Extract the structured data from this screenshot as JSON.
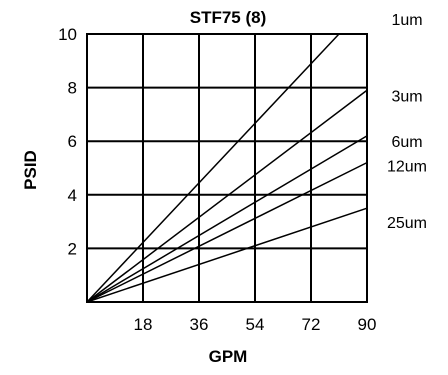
{
  "chart_data": {
    "type": "line",
    "title": "STF75 (8)",
    "xlabel": "GPM",
    "ylabel": "PSID",
    "xlim": [
      0,
      90
    ],
    "ylim": [
      0,
      10
    ],
    "x_ticks": [
      "18",
      "36",
      "54",
      "72",
      "90"
    ],
    "y_ticks": [
      "2",
      "4",
      "6",
      "8",
      "10"
    ],
    "grid": true,
    "series": [
      {
        "name": "1um",
        "x": [
          0,
          81
        ],
        "y": [
          0,
          10
        ]
      },
      {
        "name": "3um",
        "x": [
          0,
          90
        ],
        "y": [
          0,
          7.9
        ]
      },
      {
        "name": "6um",
        "x": [
          0,
          90
        ],
        "y": [
          0,
          6.2
        ]
      },
      {
        "name": "12um",
        "x": [
          0,
          90
        ],
        "y": [
          0,
          5.2
        ]
      },
      {
        "name": "25um",
        "x": [
          0,
          90
        ],
        "y": [
          0,
          3.5
        ]
      }
    ]
  }
}
